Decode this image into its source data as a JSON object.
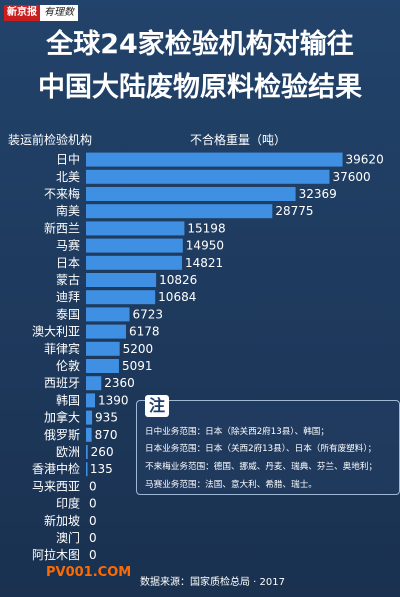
{
  "header": {
    "logo_red": "新京报",
    "logo_white": "有理数",
    "title_line1": "全球24家检验机构对输往",
    "title_line2": "中国大陆废物原料检验结果"
  },
  "chart_data": {
    "type": "bar",
    "orientation": "horizontal",
    "xlabel": "不合格重量（吨）",
    "ylabel": "装运前检验机构",
    "xlim": [
      0,
      40000
    ],
    "grid": false,
    "bar_color": "#3f8fe2",
    "categories": [
      "日中",
      "北美",
      "不来梅",
      "南美",
      "新西兰",
      "马赛",
      "日本",
      "蒙古",
      "迪拜",
      "泰国",
      "澳大利亚",
      "菲律宾",
      "伦敦",
      "西班牙",
      "韩国",
      "加拿大",
      "俄罗斯",
      "欧洲",
      "香港中检",
      "马来西亚",
      "印度",
      "新加坡",
      "澳门",
      "阿拉木图"
    ],
    "values": [
      39620,
      37600,
      32369,
      28775,
      15198,
      14950,
      14821,
      10826,
      10684,
      6723,
      6178,
      5200,
      5091,
      2360,
      1390,
      935,
      870,
      260,
      135,
      0,
      0,
      0,
      0,
      0
    ]
  },
  "note": {
    "badge": "注",
    "lines": [
      "日中业务范围：日本（除关西2府13县）、韩国；",
      "日本业务范围：日本（关西2府13县）、日本（所有废塑料）；",
      "不来梅业务范围：德国、挪威、丹麦、瑞典、芬兰、奥地利；",
      "马赛业务范围：法国、意大利、希腊、瑞士。"
    ]
  },
  "footer": {
    "source": "数据来源：国家质检总局 · 2017",
    "watermark": "PV001.COM"
  }
}
